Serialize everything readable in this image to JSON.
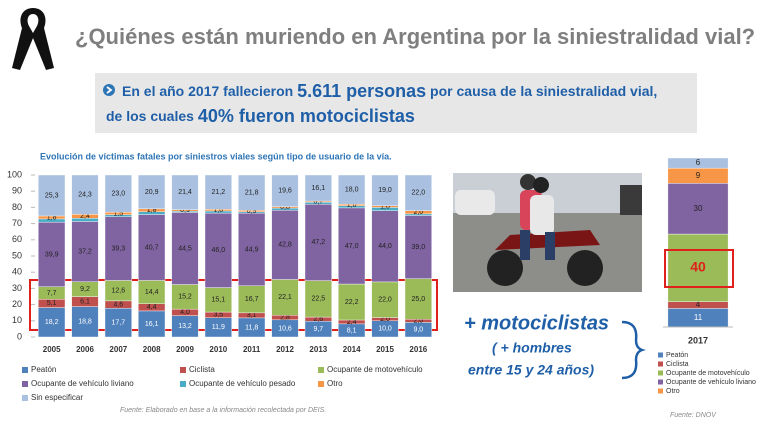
{
  "header": {
    "title": "¿Quiénes están muriendo en Argentina por la siniestralidad vial?"
  },
  "banner": {
    "line1": [
      "En el año 2017 fallecieron ",
      "5.611 personas",
      " por causa de la siniestralidad vial,"
    ],
    "line2": [
      "de los cuales ",
      "40% fueron motociclistas"
    ]
  },
  "callout": {
    "main": "+ motociclistas",
    "line1": "( + hombres",
    "line2": "entre 15 y 24 años)"
  },
  "chart_data": [
    {
      "type": "stacked_bar",
      "title": "Evolución de víctimas fatales por siniestros viales según tipo de usuario de la vía.",
      "source": "Fuente: Elaborado en base a la información recolectada por DEIS.",
      "categories": [
        "2005",
        "2006",
        "2007",
        "2008",
        "2009",
        "2010",
        "2011",
        "2012",
        "2013",
        "2014",
        "2015",
        "2016"
      ],
      "ylim": [
        0,
        100
      ],
      "yticks": [
        0,
        10,
        20,
        30,
        40,
        50,
        60,
        70,
        80,
        90,
        100
      ],
      "grid": false,
      "series": [
        {
          "name": "Peatón",
          "color": "#4f81bd",
          "values": [
            18.2,
            18.8,
            17.7,
            16.1,
            13.2,
            11.9,
            11.8,
            10.6,
            9.7,
            8.1,
            10.0,
            9.0
          ],
          "value_labels": [
            "18,2",
            "18,8",
            "17,7",
            "16,1",
            "13,2",
            "11,9",
            "11,8",
            "10,6",
            "9,7",
            "8,1",
            "10,0",
            "9,0"
          ]
        },
        {
          "name": "Ciclista",
          "color": "#c0504d",
          "values": [
            5.1,
            6.1,
            4.6,
            4.4,
            4.0,
            3.5,
            3.1,
            2.8,
            2.6,
            2.4,
            2.0,
            2.0
          ],
          "value_labels": [
            "5,1",
            "6,1",
            "4,6",
            "4,4",
            "4,0",
            "3,5",
            "3,1",
            "2,8",
            "2,6",
            "2,4",
            "2,0",
            "2,0"
          ]
        },
        {
          "name": "Ocupante de motovehículo",
          "color": "#9bbb59",
          "values": [
            7.7,
            9.2,
            12.6,
            14.4,
            15.2,
            15.1,
            16.7,
            22.1,
            22.5,
            22.2,
            22.0,
            25.0
          ],
          "value_labels": [
            "7,7",
            "9,2",
            "12,6",
            "14,4",
            "15,2",
            "15,1",
            "16,7",
            "22,1",
            "22,5",
            "22,2",
            "22,0",
            "25,0"
          ]
        },
        {
          "name": "Ocupante de vehículo liviano",
          "color": "#8064a2",
          "values": [
            39.9,
            37.2,
            39.3,
            40.7,
            44.5,
            46.0,
            44.9,
            42.8,
            47.2,
            47.0,
            44.0,
            39.0
          ],
          "value_labels": [
            "39,9",
            "37,2",
            "39,3",
            "40,7",
            "44,5",
            "46,0",
            "44,9",
            "42,8",
            "47,2",
            "47,0",
            "44,0",
            "39,0"
          ]
        },
        {
          "name": "Ocupante de vehículo pesado",
          "color": "#4bacc6",
          "values": [
            2.0,
            2.0,
            1.3,
            1.7,
            0.8,
            1.3,
            0.8,
            1.3,
            1.2,
            1.3,
            2.0,
            1.0
          ]
        },
        {
          "name": "Otro",
          "color": "#f79646",
          "values": [
            1.8,
            2.4,
            1.5,
            1.8,
            0.9,
            1.0,
            0.9,
            0.8,
            0.7,
            1.0,
            1.0,
            2.0
          ],
          "value_labels": [
            "1,8",
            "2,4",
            "1,5",
            "1,8",
            "0,9",
            "1,0",
            "0,9",
            "0,8",
            "0,7",
            "1,0",
            "1,0",
            "2,0"
          ]
        },
        {
          "name": "Sin especificar",
          "color": "#a9c0e0",
          "values": [
            25.3,
            24.3,
            23.0,
            20.9,
            21.4,
            21.2,
            21.8,
            19.6,
            16.1,
            18.0,
            19.0,
            22.0
          ],
          "value_labels": [
            "25,3",
            "24,3",
            "23,0",
            "20,9",
            "21,4",
            "21,2",
            "21,8",
            "19,6",
            "16,1",
            "18,0",
            "19,0",
            "22,0"
          ]
        }
      ]
    },
    {
      "type": "stacked_bar",
      "source": "Fuente: DNOV",
      "categories": [
        "2017"
      ],
      "ylim": [
        0,
        100
      ],
      "show_values": true,
      "series": [
        {
          "name": "Peatón",
          "color": "#4f81bd",
          "values": [
            11
          ]
        },
        {
          "name": "Ciclista",
          "color": "#c0504d",
          "values": [
            4
          ]
        },
        {
          "name": "Ocupante de motovehículo",
          "color": "#9bbb59",
          "values": [
            40
          ]
        },
        {
          "name": "Ocupante de vehículo liviano",
          "color": "#8064a2",
          "values": [
            30
          ]
        },
        {
          "name": "Otro",
          "color": "#f79646",
          "values": [
            9
          ]
        },
        {
          "color": "#a9c0e0",
          "values": [
            6
          ]
        }
      ]
    }
  ]
}
